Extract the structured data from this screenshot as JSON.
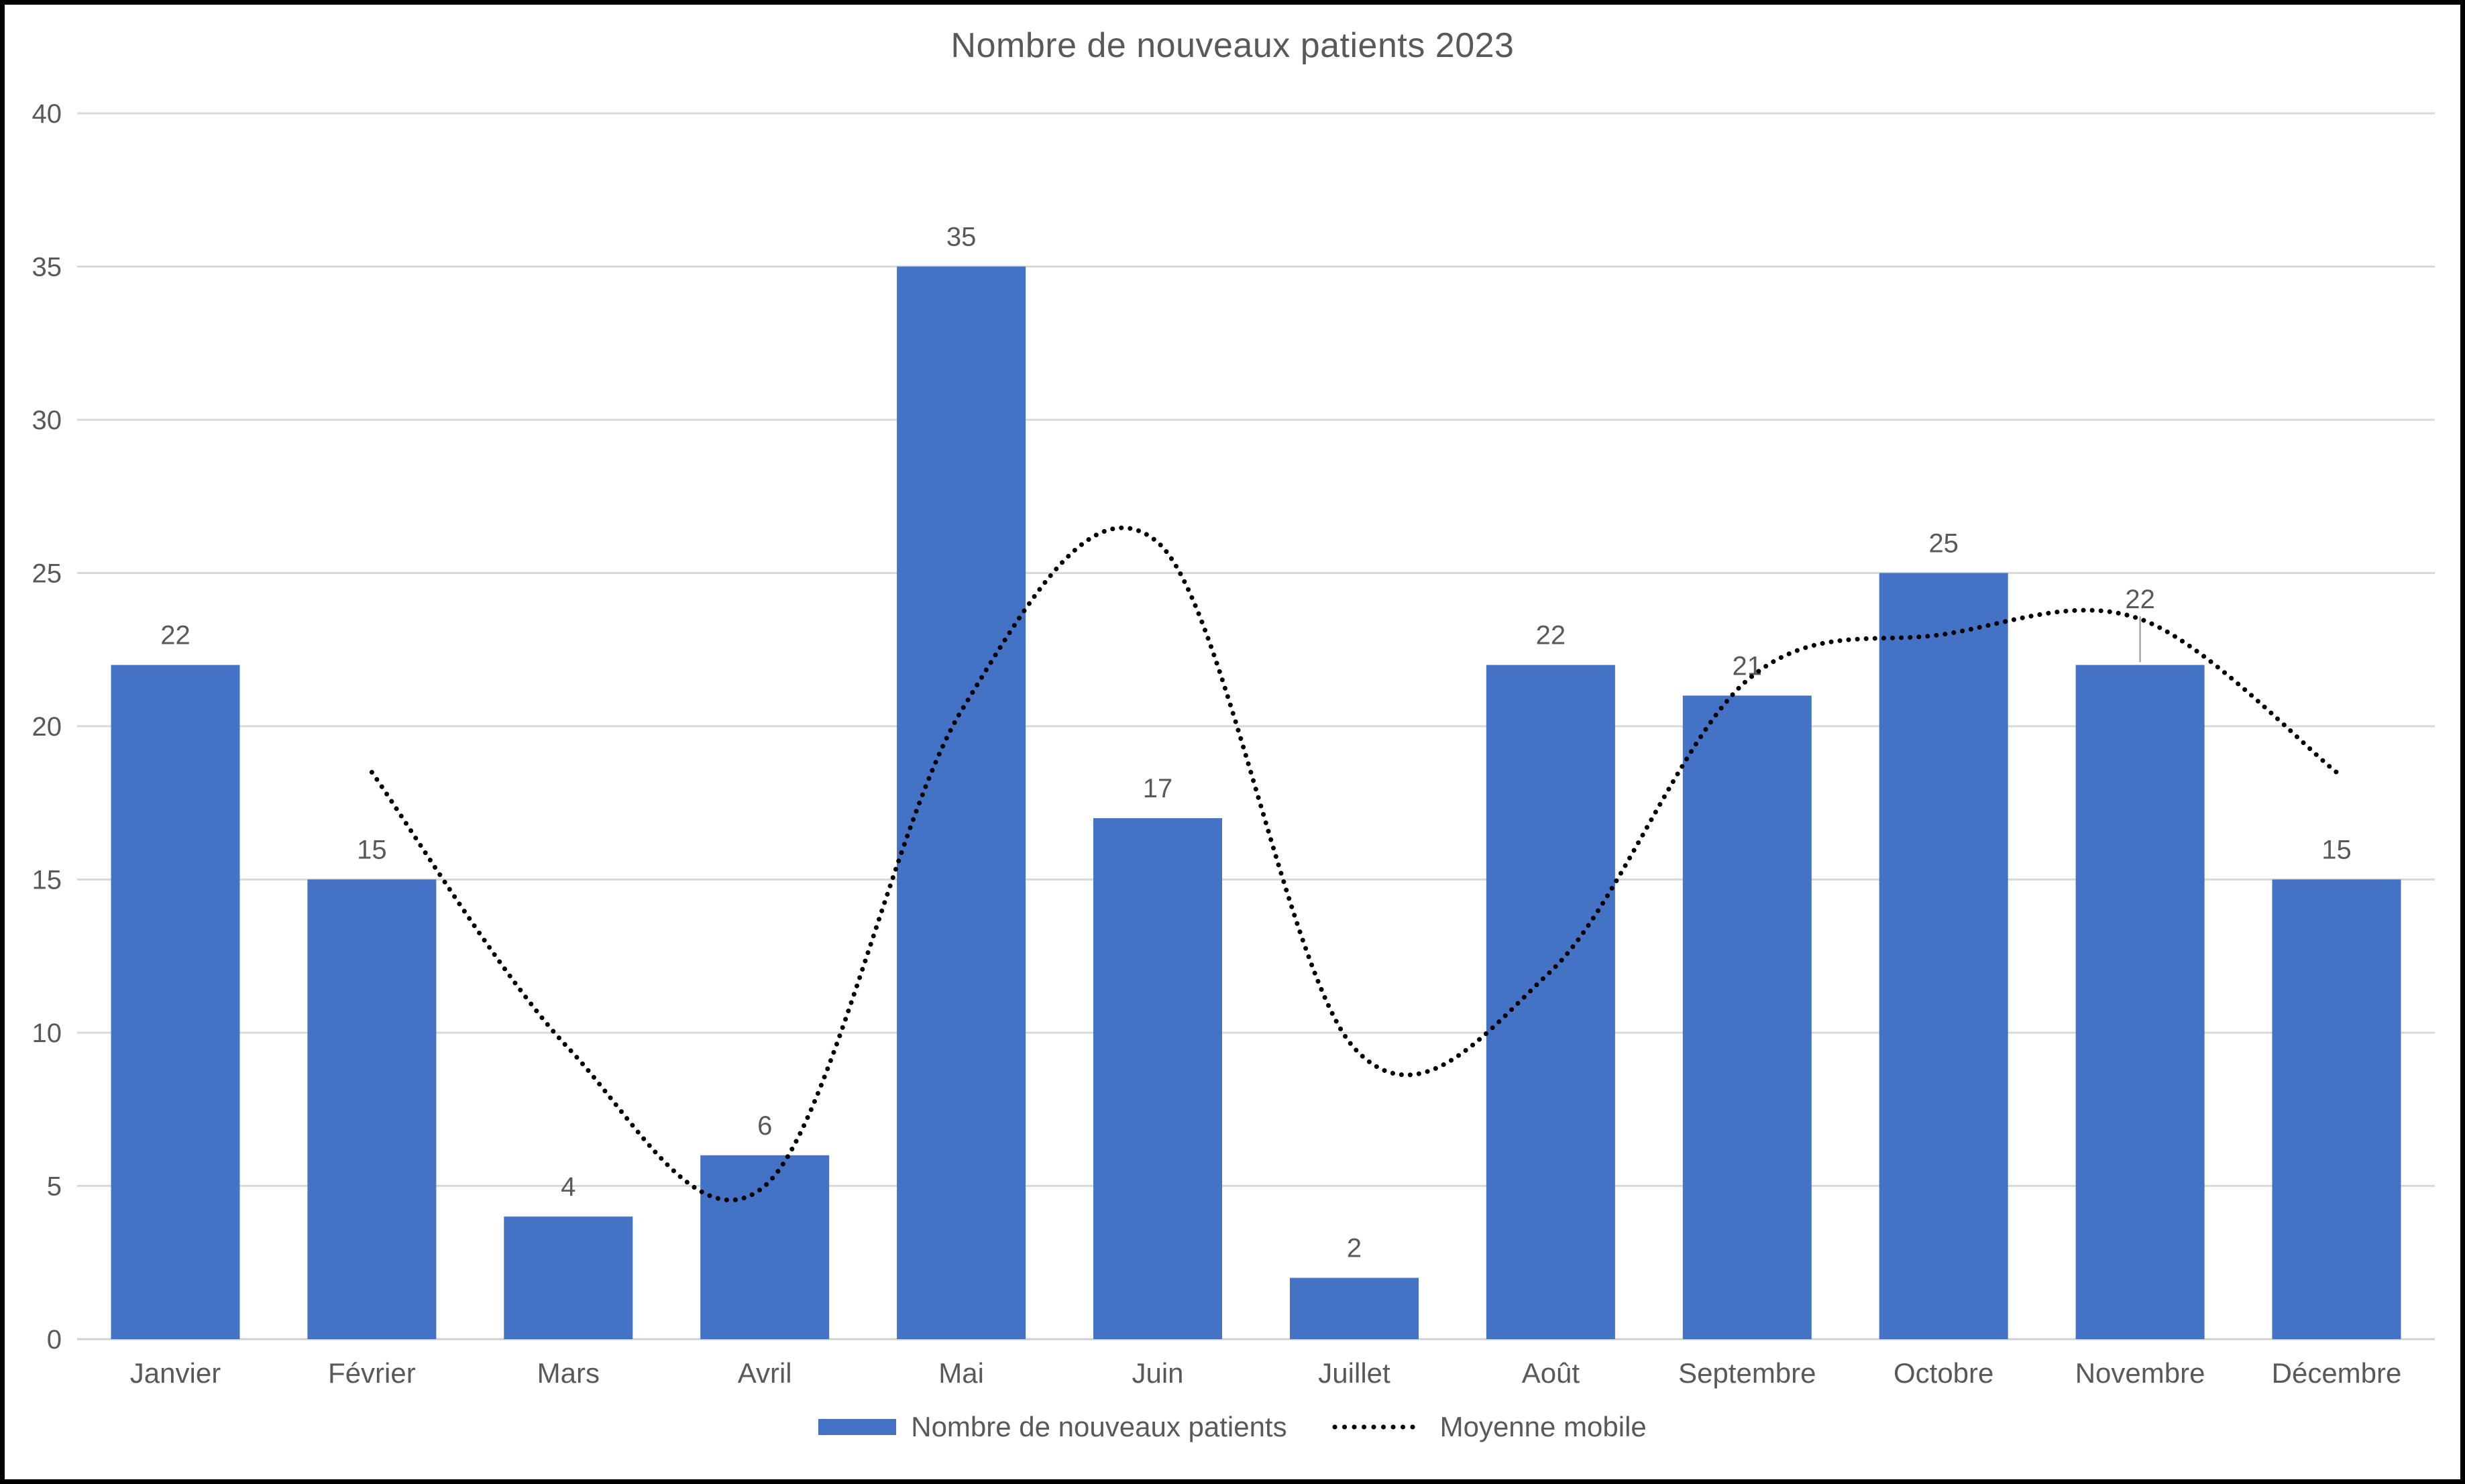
{
  "title": "Nombre de nouveaux patients 2023",
  "chart_data": {
    "type": "bar",
    "title": "Nombre de nouveaux patients 2023",
    "categories": [
      "Janvier",
      "Février",
      "Mars",
      "Avril",
      "Mai",
      "Juin",
      "Juillet",
      "Août",
      "Septembre",
      "Octobre",
      "Novembre",
      "Décembre"
    ],
    "series": [
      {
        "name": "Nombre de nouveaux patients",
        "type": "bar",
        "color": "#4472C4",
        "values": [
          22,
          15,
          4,
          6,
          35,
          17,
          2,
          22,
          21,
          25,
          22,
          15
        ],
        "data_labels": true
      },
      {
        "name": "Moyenne mobile",
        "type": "dotted-line",
        "color": "#000000",
        "smooth": true,
        "values": [
          null,
          18.5,
          9.5,
          5,
          20.5,
          26,
          9.5,
          12,
          21.5,
          23,
          23.5,
          18.5
        ]
      }
    ],
    "xlabel": "",
    "ylabel": "",
    "ylim": [
      0,
      40
    ],
    "y_ticks": [
      0,
      5,
      10,
      15,
      20,
      25,
      30,
      35,
      40
    ],
    "grid": "horizontal",
    "legend_position": "bottom",
    "colors": {
      "bar": "#4472C4",
      "grid": "#D9D9D9",
      "axis_line": "#D1D1D1",
      "text": "#595959",
      "line": "#000000",
      "leader_line": "#A6A6A6",
      "background": "#FFFFFF",
      "border": "#000000"
    }
  },
  "legend": {
    "items": [
      {
        "label": "Nombre de nouveaux patients",
        "marker": "bar-swatch",
        "color": "#4472C4"
      },
      {
        "label": "Moyenne mobile",
        "marker": "dotted-line",
        "color": "#000000"
      }
    ]
  }
}
